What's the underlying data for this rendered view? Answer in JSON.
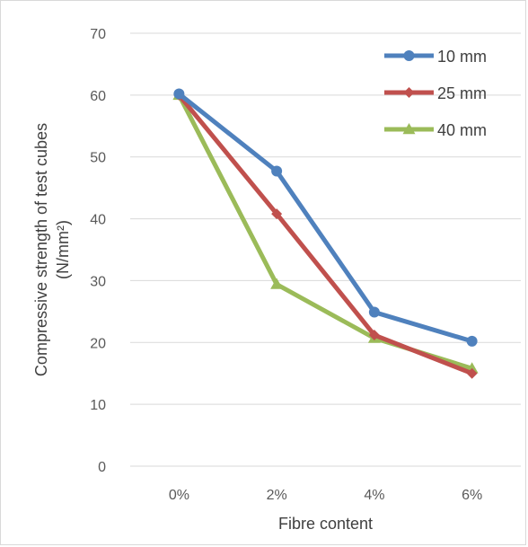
{
  "chart_data": {
    "type": "line",
    "title": "",
    "xlabel": "Fibre content",
    "ylabel_line1": "Compressive strength of test cubes",
    "ylabel_line2": "(N/mm²)",
    "categories": [
      "0%",
      "2%",
      "4%",
      "6%"
    ],
    "ylim": [
      0,
      70
    ],
    "yticks": [
      0,
      10,
      20,
      30,
      40,
      50,
      60,
      70
    ],
    "grid": "horizontal",
    "legend_position": "top-right",
    "series": [
      {
        "name": "10 mm",
        "values": [
          60.2,
          47.7,
          24.9,
          20.2
        ],
        "color": "#4f81bd",
        "marker": "circle"
      },
      {
        "name": "25 mm",
        "values": [
          60.0,
          40.8,
          21.2,
          15.0
        ],
        "color": "#c0504d",
        "marker": "diamond"
      },
      {
        "name": "40 mm",
        "values": [
          60.0,
          29.4,
          20.7,
          15.8
        ],
        "color": "#9bbb59",
        "marker": "triangle"
      }
    ]
  }
}
